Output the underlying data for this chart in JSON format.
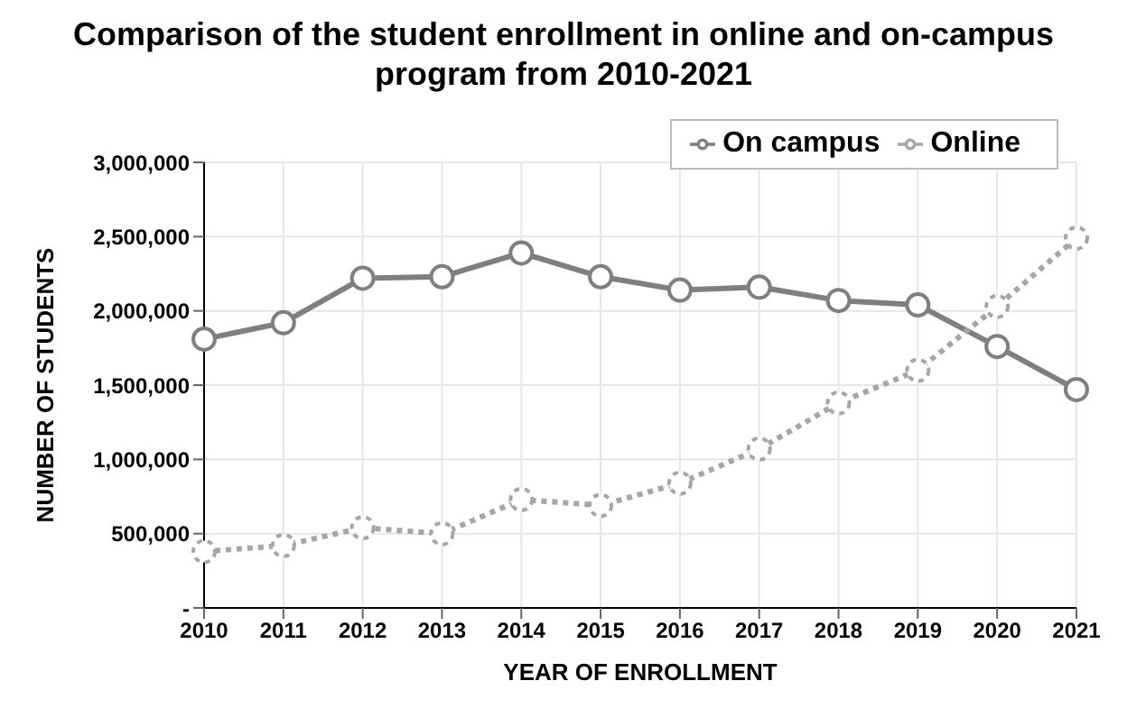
{
  "chart_data": {
    "type": "line",
    "title": "Comparison of the student enrollment in online and on-campus program from 2010-2021",
    "xlabel": "YEAR OF ENROLLMENT",
    "ylabel": "NUMBER OF STUDENTS",
    "categories": [
      "2010",
      "2011",
      "2012",
      "2013",
      "2014",
      "2015",
      "2016",
      "2017",
      "2018",
      "2019",
      "2020",
      "2021"
    ],
    "series": [
      {
        "name": "On campus",
        "color": "#7f7f7f",
        "line_style": "solid",
        "values": [
          1810000,
          1920000,
          2220000,
          2230000,
          2390000,
          2230000,
          2140000,
          2160000,
          2070000,
          2040000,
          1760000,
          1470000
        ]
      },
      {
        "name": "Online",
        "color": "#a6a6a6",
        "line_style": "dotted",
        "values": [
          380000,
          420000,
          540000,
          500000,
          730000,
          690000,
          840000,
          1070000,
          1380000,
          1600000,
          2030000,
          2490000
        ]
      }
    ],
    "ylim": [
      0,
      3000000
    ],
    "yticks": [
      {
        "value": 0,
        "label": "-"
      },
      {
        "value": 500000,
        "label": "500,000"
      },
      {
        "value": 1000000,
        "label": "1,000,000"
      },
      {
        "value": 1500000,
        "label": "1,500,000"
      },
      {
        "value": 2000000,
        "label": "2,000,000"
      },
      {
        "value": 2500000,
        "label": "2,500,000"
      },
      {
        "value": 3000000,
        "label": "3,000,000"
      }
    ],
    "grid": true,
    "legend": "top right",
    "marker": "circle"
  }
}
